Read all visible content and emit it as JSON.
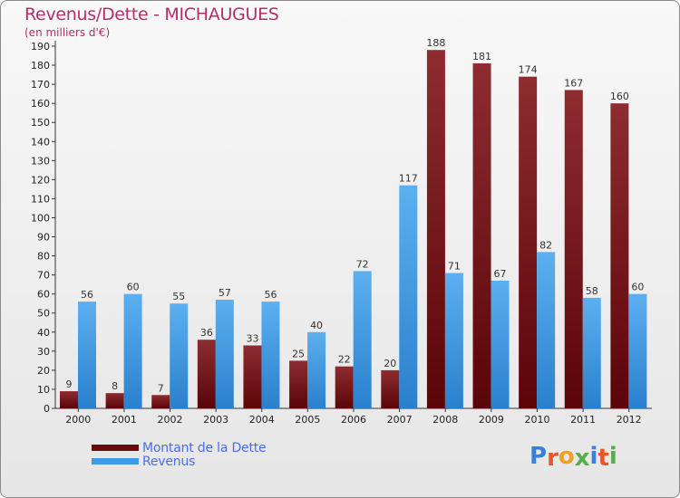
{
  "header": {
    "title": "Revenus/Dette - MICHAUGUES",
    "subtitle": "(en milliers d'€)"
  },
  "logo": {
    "text": "Proxiti",
    "colors": [
      "#3a7fd8",
      "#e8552a",
      "#f0a020",
      "#55b04a",
      "#3a7fd8",
      "#e8552a",
      "#55b04a"
    ]
  },
  "colors": {
    "dette": "#7a1518",
    "revenus": "#3f9be6"
  },
  "chart_data": {
    "type": "bar",
    "title": "Revenus/Dette - MICHAUGUES",
    "subtitle": "(en milliers d'€)",
    "categories": [
      "2000",
      "2001",
      "2002",
      "2003",
      "2004",
      "2005",
      "2006",
      "2007",
      "2008",
      "2009",
      "2010",
      "2011",
      "2012"
    ],
    "series": [
      {
        "name": "Montant de la Dette",
        "values": [
          9,
          8,
          7,
          36,
          33,
          25,
          22,
          20,
          188,
          181,
          174,
          167,
          160
        ]
      },
      {
        "name": "Revenus",
        "values": [
          56,
          60,
          55,
          57,
          56,
          40,
          72,
          117,
          71,
          67,
          82,
          58,
          60
        ]
      }
    ],
    "ylim": [
      0,
      190
    ],
    "yticks": [
      0,
      10,
      20,
      30,
      40,
      50,
      60,
      70,
      80,
      90,
      100,
      110,
      120,
      130,
      140,
      150,
      160,
      170,
      180,
      190
    ],
    "grid": false,
    "legend": "bottom-left"
  }
}
